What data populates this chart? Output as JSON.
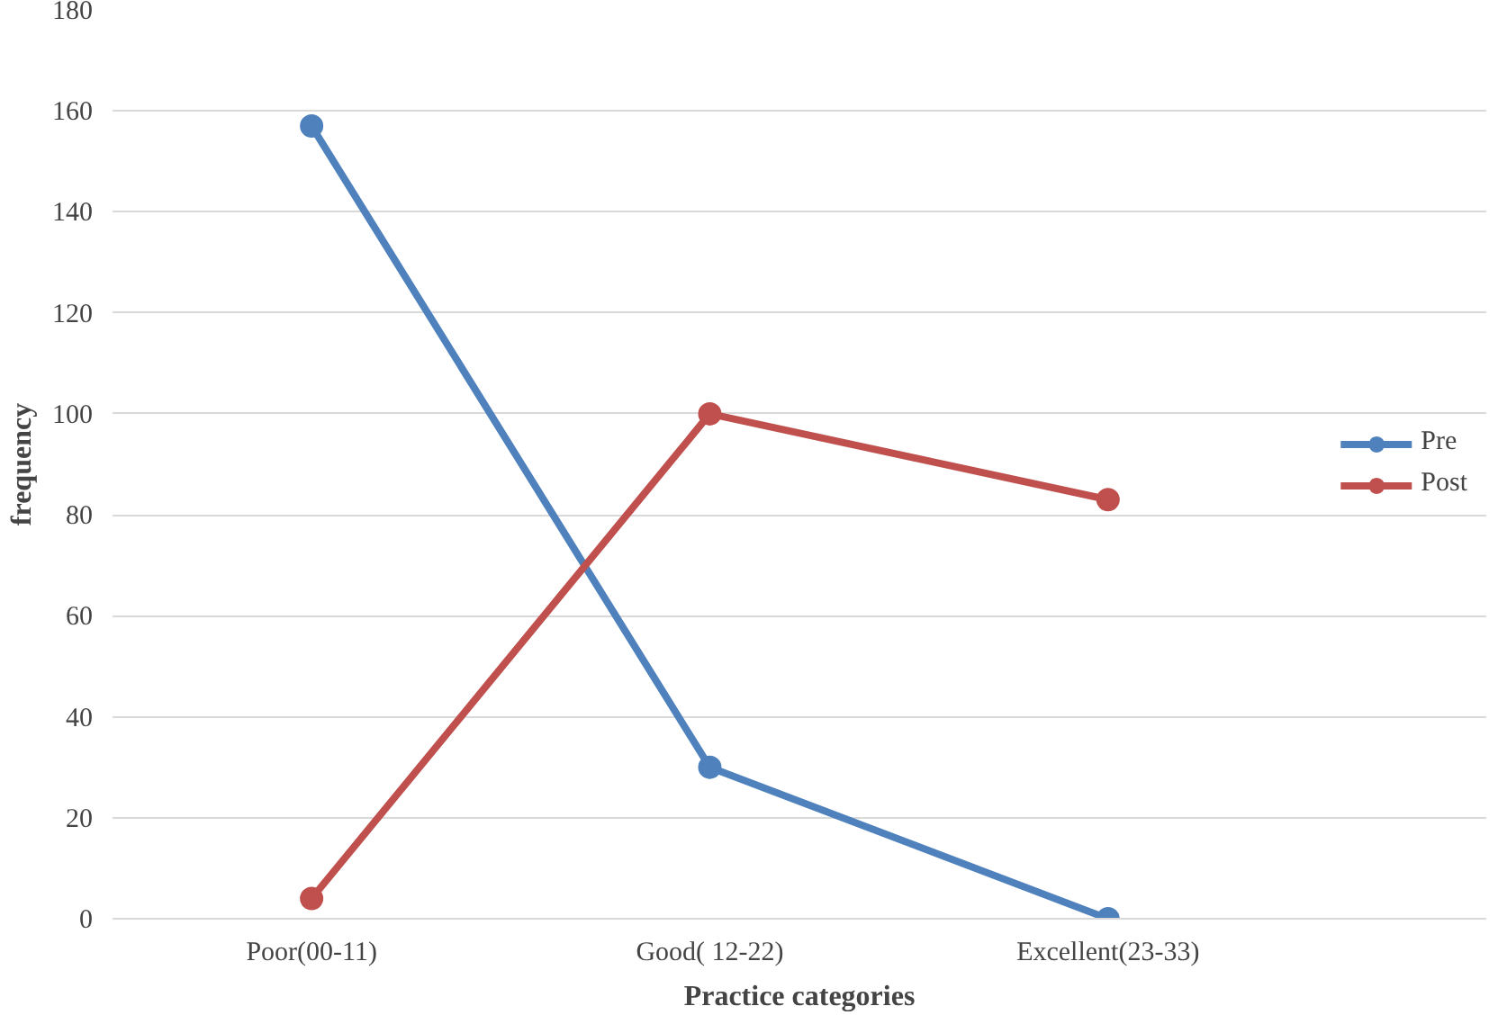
{
  "chart_data": {
    "type": "line",
    "xlabel": "Practice categories",
    "ylabel": "frequency",
    "categories": [
      "Poor(00-11)",
      "Good( 12-22)",
      "Excellent(23-33)"
    ],
    "series": [
      {
        "name": "Pre",
        "color": "#4f81bd",
        "values": [
          157,
          30,
          0
        ]
      },
      {
        "name": "Post",
        "color": "#c0504d",
        "values": [
          4,
          100,
          83
        ]
      }
    ],
    "ylim": [
      0,
      180
    ],
    "yticks": [
      0,
      20,
      40,
      60,
      80,
      100,
      120,
      140,
      160,
      180
    ],
    "grid": "y",
    "legend": "right",
    "marker": "circle",
    "line_style": "solid"
  }
}
